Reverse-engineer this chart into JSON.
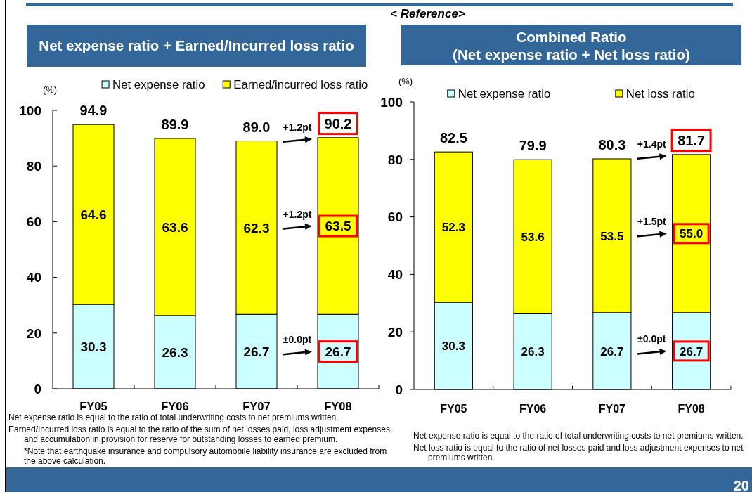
{
  "chart_data": [
    {
      "type": "bar",
      "title": "Net expense ratio + Earned/Incurred loss ratio",
      "ylabel": "(%)",
      "categories": [
        "FY05",
        "FY06",
        "FY07",
        "FY08"
      ],
      "series": [
        {
          "name": "Net expense ratio",
          "color": "#ccffff",
          "values": [
            30.3,
            26.3,
            26.7,
            26.7
          ],
          "value_labels": [
            "30.3",
            "26.3",
            "26.7",
            "26.7"
          ]
        },
        {
          "name": "Earned/incurred loss ratio",
          "color": "#ffff00",
          "values": [
            64.6,
            63.6,
            62.3,
            63.5
          ],
          "value_labels": [
            "64.6",
            "63.6",
            "62.3",
            "63.5"
          ]
        }
      ],
      "stacked": true,
      "ylim": [
        0,
        100
      ],
      "yticks": [
        0,
        20,
        40,
        60,
        80,
        100
      ],
      "legend": "top",
      "totals": [
        "94.9",
        "89.9",
        "89.0",
        "90.2"
      ],
      "annotations": [
        "+1.2pt",
        "+1.2pt",
        "±0.0pt",
        "Net expense ratio is equal to the ratio of total underwriting costs to net premiums written.",
        "Earned/Incurred loss ratio is equal to the ratio of the sum of net losses paid, loss adjustment expenses and accumulation in provision for reserve for outstanding losses to earned premium.",
        "*Note that earthquake insurance and compulsory automobile liability insurance are excluded from the above calculation."
      ]
    },
    {
      "type": "bar",
      "title": "Combined Ratio",
      "subtitle": "(Net expense ratio + Net loss ratio)",
      "ylabel": "(%)",
      "categories": [
        "FY05",
        "FY06",
        "FY07",
        "FY08"
      ],
      "series": [
        {
          "name": "Net expense ratio",
          "color": "#ccffff",
          "values": [
            30.3,
            26.3,
            26.7,
            26.7
          ],
          "value_labels": [
            "30.3",
            "26.3",
            "26.7",
            "26.7"
          ]
        },
        {
          "name": "Net loss ratio",
          "color": "#ffff00",
          "values": [
            52.3,
            53.6,
            53.5,
            55.0
          ],
          "value_labels": [
            "52.3",
            "53.6",
            "53.5",
            "55.0"
          ]
        }
      ],
      "stacked": true,
      "ylim": [
        0,
        100
      ],
      "yticks": [
        0,
        20,
        40,
        60,
        80,
        100
      ],
      "legend": "top",
      "totals": [
        "82.5",
        "79.9",
        "80.3",
        "81.7"
      ],
      "annotations": [
        "< Reference>",
        "+1.4pt",
        "+1.5pt",
        "±0.0pt",
        "Net expense ratio is equal to the ratio of total underwriting costs to net premiums written.",
        "Net loss ratio is equal to the ratio of net losses paid and loss adjustment expenses to net premiums written.",
        "20"
      ]
    }
  ]
}
